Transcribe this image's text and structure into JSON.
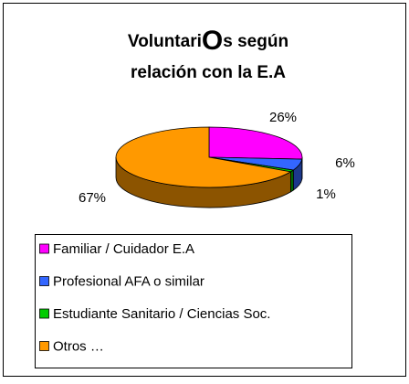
{
  "chart_data": {
    "type": "pie3d",
    "title": [
      "VoluntariOs según",
      "relación con la E.A"
    ],
    "categories": [
      "Familiar / Cuidador E.A",
      "Profesional AFA o similar",
      "Estudiante Sanitario / Ciencias Soc.",
      "Otros …"
    ],
    "values": [
      26,
      6,
      1,
      67
    ],
    "value_labels": [
      "26%",
      "6%",
      "1%",
      "67%"
    ],
    "colors": [
      "#ff00ff",
      "#3366ff",
      "#00cc00",
      "#ff9900"
    ],
    "legend": "bottom"
  }
}
